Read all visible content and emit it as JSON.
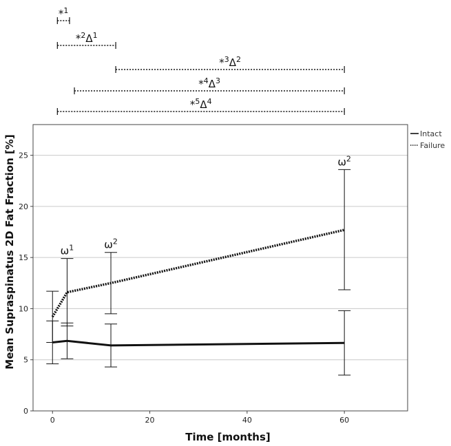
{
  "chart_data": {
    "type": "line",
    "xlabel": "Time [months]",
    "ylabel": "Mean Supraspinatus 2D Fat Fraction [%]",
    "xlim": [
      -4,
      73
    ],
    "ylim": [
      0,
      28
    ],
    "x_ticks": [
      0,
      20,
      40,
      60
    ],
    "y_ticks": [
      0,
      5,
      10,
      15,
      20,
      25
    ],
    "grid": "horizontal",
    "legend_position": "top-right",
    "series": [
      {
        "name": "Intact",
        "style": "solid",
        "points": [
          {
            "x": 0,
            "y": 6.7,
            "err_low": 4.6,
            "err_high": 8.8
          },
          {
            "x": 3,
            "y": 6.85,
            "err_low": 5.1,
            "err_high": 8.6
          },
          {
            "x": 12,
            "y": 6.4,
            "err_low": 4.3,
            "err_high": 8.5
          },
          {
            "x": 60,
            "y": 6.65,
            "err_low": 3.5,
            "err_high": 9.8
          }
        ]
      },
      {
        "name": "Failure",
        "style": "dotted",
        "points": [
          {
            "x": 0,
            "y": 9.2,
            "err_low": 6.7,
            "err_high": 11.7
          },
          {
            "x": 3,
            "y": 11.6,
            "err_low": 8.3,
            "err_high": 14.9
          },
          {
            "x": 12,
            "y": 12.5,
            "err_low": 9.5,
            "err_high": 15.5
          },
          {
            "x": 60,
            "y": 17.7,
            "err_low": 11.85,
            "err_high": 23.6
          }
        ]
      }
    ],
    "point_annotations": [
      {
        "x": 3,
        "y": 14.9,
        "symbol": "ω",
        "sup": "1"
      },
      {
        "x": 12,
        "y": 15.5,
        "symbol": "ω",
        "sup": "2"
      },
      {
        "x": 60,
        "y": 23.6,
        "symbol": "ω",
        "sup": "2"
      }
    ],
    "brackets": [
      {
        "from": 1,
        "to": 3.5,
        "marks": [
          {
            "symbol": "*",
            "sup": "1"
          }
        ]
      },
      {
        "from": 1,
        "to": 13,
        "marks": [
          {
            "symbol": "*",
            "sup": "2"
          },
          {
            "symbol": "Δ",
            "sup": "1"
          }
        ]
      },
      {
        "from": 13,
        "to": 60,
        "marks": [
          {
            "symbol": "*",
            "sup": "3"
          },
          {
            "symbol": "Δ",
            "sup": "2"
          }
        ]
      },
      {
        "from": 4.5,
        "to": 60,
        "marks": [
          {
            "symbol": "*",
            "sup": "4"
          },
          {
            "symbol": "Δ",
            "sup": "3"
          }
        ]
      },
      {
        "from": 1,
        "to": 60,
        "marks": [
          {
            "symbol": "*",
            "sup": "5"
          },
          {
            "symbol": "Δ",
            "sup": "4"
          }
        ]
      }
    ]
  }
}
